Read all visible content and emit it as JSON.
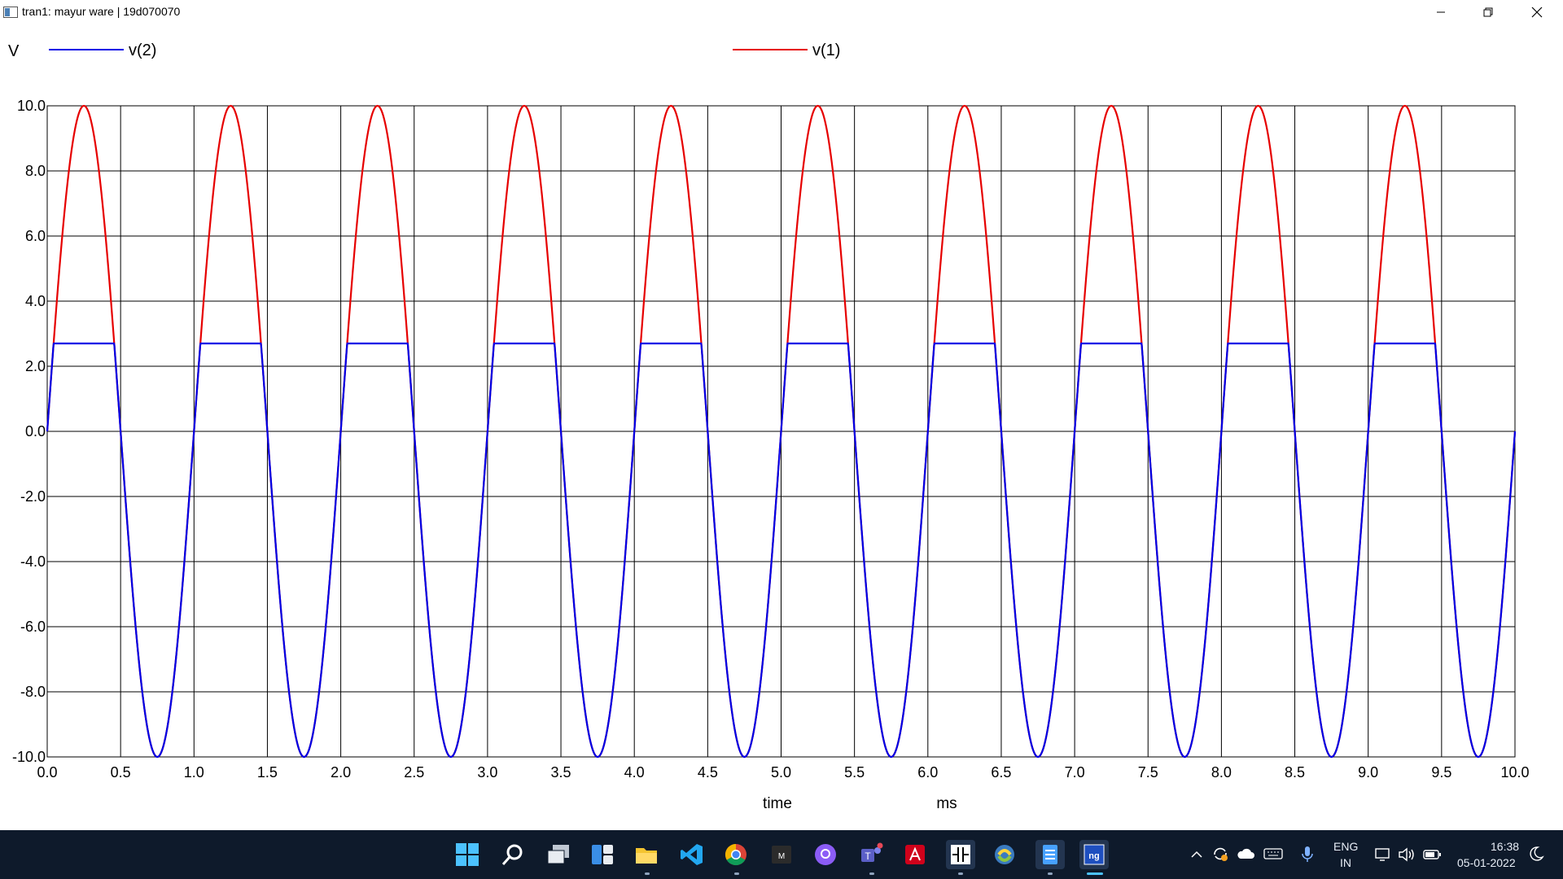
{
  "window": {
    "title": "tran1: mayur ware | 19d070070"
  },
  "legend": {
    "y_unit": "V",
    "series": [
      {
        "name": "v(2)",
        "color": "#0000e6"
      },
      {
        "name": "v(1)",
        "color": "#e60000"
      }
    ]
  },
  "chart_data": {
    "type": "line",
    "title": "",
    "xlabel": "time",
    "xunit": "ms",
    "ylabel": "V",
    "xlim": [
      0.0,
      10.0
    ],
    "ylim": [
      -10.0,
      10.0
    ],
    "grid": true,
    "x_ticks": [
      "0.0",
      "0.5",
      "1.0",
      "1.5",
      "2.0",
      "2.5",
      "3.0",
      "3.5",
      "4.0",
      "4.5",
      "5.0",
      "5.5",
      "6.0",
      "6.5",
      "7.0",
      "7.5",
      "8.0",
      "8.5",
      "9.0",
      "9.5",
      "10.0"
    ],
    "y_ticks": [
      "10.0",
      "8.0",
      "6.0",
      "4.0",
      "2.0",
      "0.0",
      "-2.0",
      "-4.0",
      "-6.0",
      "-8.0",
      "-10.0"
    ],
    "series": [
      {
        "name": "v(1)",
        "color": "#e60000",
        "description": "input sine, amplitude 10 V, frequency 1 kHz",
        "amplitude": 10.0,
        "frequency_khz": 1.0,
        "clip_level": null
      },
      {
        "name": "v(2)",
        "color": "#0000e6",
        "description": "output sine clipped at positive peak",
        "amplitude": 10.0,
        "frequency_khz": 1.0,
        "clip_level": 2.7
      }
    ]
  },
  "taskbar": {
    "apps": [
      {
        "name": "start-icon"
      },
      {
        "name": "search-icon"
      },
      {
        "name": "task-view-icon"
      },
      {
        "name": "widgets-icon"
      },
      {
        "name": "file-explorer-icon"
      },
      {
        "name": "vscode-icon"
      },
      {
        "name": "chrome-icon"
      },
      {
        "name": "terminal-icon"
      },
      {
        "name": "github-icon"
      },
      {
        "name": "teams-icon"
      },
      {
        "name": "acrobat-icon"
      },
      {
        "name": "circuit-editor-icon"
      },
      {
        "name": "python-icon"
      },
      {
        "name": "notepad-icon"
      },
      {
        "name": "ngspice-icon"
      }
    ],
    "language": "ENG",
    "region": "IN",
    "time": "16:38",
    "date": "05-01-2022"
  }
}
